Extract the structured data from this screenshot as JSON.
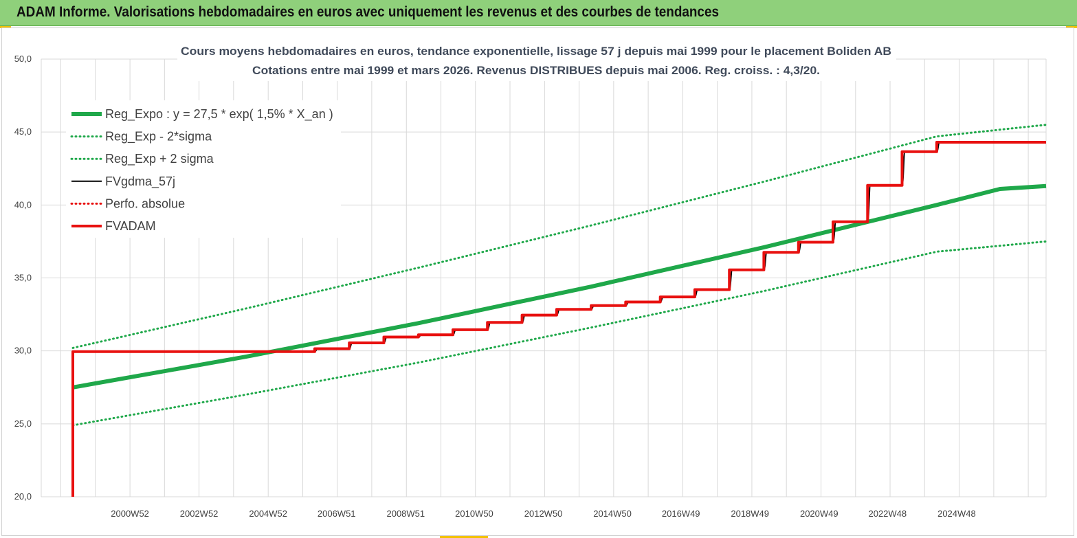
{
  "banner": {
    "title": "ADAM Informe. Valorisations hebdomadaires en euros avec uniquement les revenus et des courbes de tendances"
  },
  "colors": {
    "banner_bg": "#8fd07b",
    "reg_green": "#1fa84a",
    "fv_black": "#000000",
    "adam_red": "#e8100f",
    "grid": "#d9d9d9"
  },
  "chart_data": {
    "type": "line",
    "title": [
      "Cours moyens  hebdomadaires en euros, tendance exponentielle, lissage 57 j depuis mai 1999 pour le placement Boliden AB",
      "Cotations entre mai 1999 et mars 2026. Revenus DISTRIBUES depuis mai 2006. Reg. croiss. : 4,3/20."
    ],
    "xlabel": "",
    "ylabel": "",
    "ylim": [
      20,
      50
    ],
    "xlim": [
      "1998-06-01",
      "2027-07-01"
    ],
    "y_ticks": [
      "20,0",
      "25,0",
      "30,0",
      "35,0",
      "40,0",
      "45,0",
      "50,0"
    ],
    "x_ticks": [
      {
        "date": "2000-12-25",
        "label": "2000W52"
      },
      {
        "date": "2002-12-25",
        "label": "2002W52"
      },
      {
        "date": "2004-12-25",
        "label": "2004W52"
      },
      {
        "date": "2006-12-18",
        "label": "2006W51"
      },
      {
        "date": "2008-12-18",
        "label": "2008W51"
      },
      {
        "date": "2010-12-12",
        "label": "2010W50"
      },
      {
        "date": "2012-12-12",
        "label": "2012W50"
      },
      {
        "date": "2014-12-12",
        "label": "2014W50"
      },
      {
        "date": "2016-12-05",
        "label": "2016W49"
      },
      {
        "date": "2018-12-05",
        "label": "2018W49"
      },
      {
        "date": "2020-12-05",
        "label": "2020W49"
      },
      {
        "date": "2022-11-28",
        "label": "2022W48"
      },
      {
        "date": "2024-11-28",
        "label": "2024W48"
      }
    ],
    "grid": true,
    "legend_position": "top-left",
    "series": [
      {
        "name": "Reg_Expo : y = 27,5 * exp( 1,5% *  X_an )",
        "style": "thick-solid",
        "color": "#1fa84a",
        "points": [
          [
            "1999-05-01",
            27.5
          ],
          [
            "2004-05-01",
            29.6
          ],
          [
            "2009-05-01",
            31.9
          ],
          [
            "2014-05-01",
            34.4
          ],
          [
            "2019-05-01",
            37.1
          ],
          [
            "2024-05-01",
            40.0
          ],
          [
            "2026-03-01",
            41.1
          ],
          [
            "2027-07-01",
            41.3
          ]
        ]
      },
      {
        "name": "Reg_Exp - 2*sigma",
        "style": "dotted",
        "color": "#1fa84a",
        "points": [
          [
            "1999-05-01",
            24.9
          ],
          [
            "2004-05-01",
            27.0
          ],
          [
            "2009-05-01",
            29.2
          ],
          [
            "2014-05-01",
            31.6
          ],
          [
            "2019-05-01",
            34.1
          ],
          [
            "2024-05-01",
            36.8
          ],
          [
            "2027-07-01",
            37.5
          ]
        ]
      },
      {
        "name": "Reg_Exp + 2 sigma",
        "style": "dotted",
        "color": "#1fa84a",
        "points": [
          [
            "1999-05-01",
            30.2
          ],
          [
            "2004-05-01",
            32.9
          ],
          [
            "2009-05-01",
            35.7
          ],
          [
            "2014-05-01",
            38.6
          ],
          [
            "2019-05-01",
            41.6
          ],
          [
            "2024-05-01",
            44.7
          ],
          [
            "2027-07-01",
            45.5
          ]
        ]
      },
      {
        "name": "FVgdma_57j",
        "style": "thin-solid",
        "color": "#000000",
        "smooth": true,
        "points": [
          [
            "1999-05-01",
            20.0
          ],
          [
            "1999-05-01",
            29.95
          ],
          [
            "2006-05-01",
            29.95
          ],
          [
            "2006-06-01",
            30.15
          ],
          [
            "2007-05-01",
            30.15
          ],
          [
            "2007-06-01",
            30.55
          ],
          [
            "2008-05-01",
            30.55
          ],
          [
            "2008-06-01",
            30.95
          ],
          [
            "2009-05-01",
            30.95
          ],
          [
            "2009-06-01",
            31.1
          ],
          [
            "2010-05-01",
            31.1
          ],
          [
            "2010-06-01",
            31.45
          ],
          [
            "2011-05-01",
            31.45
          ],
          [
            "2011-06-01",
            31.95
          ],
          [
            "2012-05-01",
            31.95
          ],
          [
            "2012-06-01",
            32.45
          ],
          [
            "2013-05-01",
            32.45
          ],
          [
            "2013-06-01",
            32.85
          ],
          [
            "2014-05-01",
            32.85
          ],
          [
            "2014-06-01",
            33.1
          ],
          [
            "2015-05-01",
            33.1
          ],
          [
            "2015-06-01",
            33.35
          ],
          [
            "2016-05-01",
            33.35
          ],
          [
            "2016-06-01",
            33.7
          ],
          [
            "2017-05-01",
            33.7
          ],
          [
            "2017-06-01",
            34.2
          ],
          [
            "2018-05-01",
            34.2
          ],
          [
            "2018-06-01",
            35.55
          ],
          [
            "2019-05-01",
            35.55
          ],
          [
            "2019-06-01",
            36.75
          ],
          [
            "2020-05-01",
            36.75
          ],
          [
            "2020-06-01",
            37.45
          ],
          [
            "2021-05-01",
            37.45
          ],
          [
            "2021-06-01",
            38.85
          ],
          [
            "2022-05-01",
            38.85
          ],
          [
            "2022-06-01",
            41.35
          ],
          [
            "2023-05-01",
            41.35
          ],
          [
            "2023-06-01",
            43.65
          ],
          [
            "2024-05-01",
            43.65
          ],
          [
            "2024-06-01",
            44.3
          ],
          [
            "2027-07-01",
            44.3
          ]
        ]
      },
      {
        "name": "Perfo. absolue",
        "style": "dotted",
        "color": "#e8100f",
        "points": []
      },
      {
        "name": "FVADAM",
        "style": "thick-solid",
        "color": "#e8100f",
        "points": [
          [
            "1999-05-01",
            20.0
          ],
          [
            "1999-05-01",
            29.95
          ],
          [
            "2006-05-01",
            29.95
          ],
          [
            "2006-05-01",
            30.15
          ],
          [
            "2007-05-01",
            30.15
          ],
          [
            "2007-05-01",
            30.55
          ],
          [
            "2008-05-01",
            30.55
          ],
          [
            "2008-05-01",
            30.95
          ],
          [
            "2009-05-01",
            30.95
          ],
          [
            "2009-05-01",
            31.1
          ],
          [
            "2010-05-01",
            31.1
          ],
          [
            "2010-05-01",
            31.45
          ],
          [
            "2011-05-01",
            31.45
          ],
          [
            "2011-05-01",
            31.95
          ],
          [
            "2012-05-01",
            31.95
          ],
          [
            "2012-05-01",
            32.45
          ],
          [
            "2013-05-01",
            32.45
          ],
          [
            "2013-05-01",
            32.85
          ],
          [
            "2014-05-01",
            32.85
          ],
          [
            "2014-05-01",
            33.1
          ],
          [
            "2015-05-01",
            33.1
          ],
          [
            "2015-05-01",
            33.35
          ],
          [
            "2016-05-01",
            33.35
          ],
          [
            "2016-05-01",
            33.7
          ],
          [
            "2017-05-01",
            33.7
          ],
          [
            "2017-05-01",
            34.2
          ],
          [
            "2018-05-01",
            34.2
          ],
          [
            "2018-05-01",
            35.55
          ],
          [
            "2019-05-01",
            35.55
          ],
          [
            "2019-05-01",
            36.75
          ],
          [
            "2020-05-01",
            36.75
          ],
          [
            "2020-05-01",
            37.45
          ],
          [
            "2021-05-01",
            37.45
          ],
          [
            "2021-05-01",
            38.85
          ],
          [
            "2022-05-01",
            38.85
          ],
          [
            "2022-05-01",
            41.35
          ],
          [
            "2023-05-01",
            41.35
          ],
          [
            "2023-05-01",
            43.65
          ],
          [
            "2024-05-01",
            43.65
          ],
          [
            "2024-05-01",
            44.3
          ],
          [
            "2027-07-01",
            44.3
          ]
        ]
      }
    ]
  }
}
